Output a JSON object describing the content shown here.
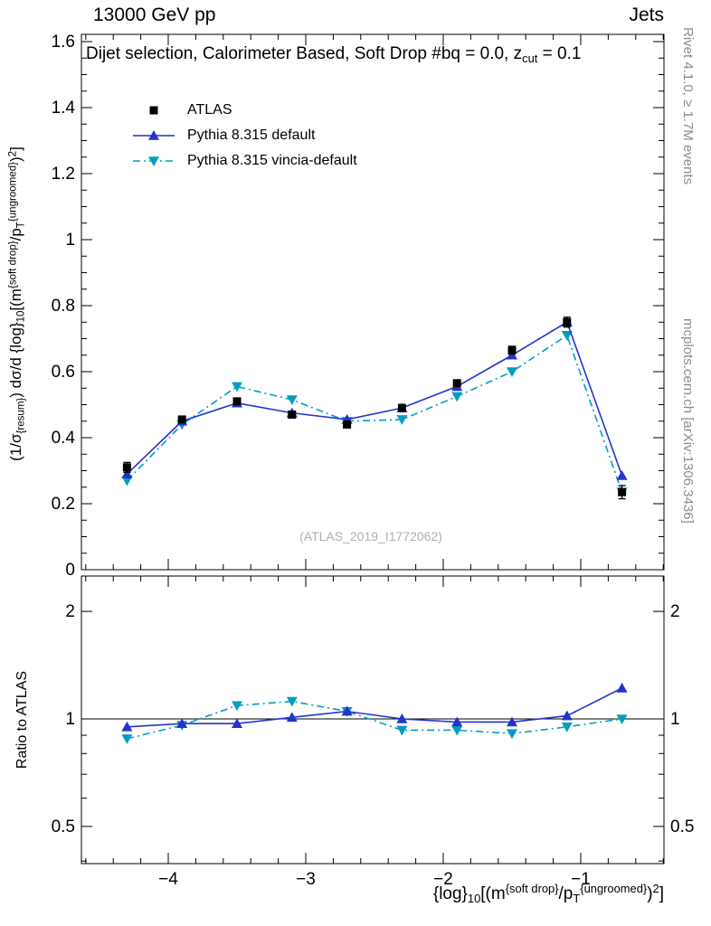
{
  "header": {
    "left_title": "13000 GeV pp",
    "right_title": "Jets"
  },
  "panel_title": [
    {
      "t": "Dijet selection, Calorimeter Based, Soft Drop #bq = 0.0, z",
      "s": "n"
    },
    {
      "t": "cut",
      "s": "sub"
    },
    {
      "t": " = 0.1",
      "s": "n"
    }
  ],
  "legend": [
    {
      "label": "ATLAS",
      "marker": "square",
      "color": "#000000",
      "line": "none"
    },
    {
      "label": "Pythia 8.315 default",
      "marker": "triangle-up",
      "color": "#2533cc",
      "line": "solid"
    },
    {
      "label": "Pythia 8.315 vincia-default",
      "marker": "triangle-down",
      "color": "#009fbf",
      "line": "dashdot"
    }
  ],
  "watermark": "(ATLAS_2019_I1772062)",
  "side_notes": {
    "top": "Rivet 4.1.0, ≥ 1.7M events",
    "bottom": "mcplots.cern.ch [arXiv:1306.3436]"
  },
  "axes": {
    "ylabel_main": [
      {
        "t": "(1/σ",
        "s": "n"
      },
      {
        "t": "{resum}",
        "s": "sub"
      },
      {
        "t": ") dσ/d {log}",
        "s": "n"
      },
      {
        "t": "10",
        "s": "sub"
      },
      {
        "t": "[(m",
        "s": "n"
      },
      {
        "t": "{soft drop}",
        "s": "sup"
      },
      {
        "t": "/p",
        "s": "n"
      },
      {
        "t": "T",
        "s": "sub"
      },
      {
        "t": "{ungroomed}",
        "s": "sup"
      },
      {
        "t": ")",
        "s": "n"
      },
      {
        "t": "2",
        "s": "sup"
      },
      {
        "t": "]",
        "s": "n"
      }
    ],
    "ylabel_ratio": "Ratio to ATLAS",
    "xlabel": [
      {
        "t": "{log}",
        "s": "n"
      },
      {
        "t": "10",
        "s": "sub"
      },
      {
        "t": "[(m",
        "s": "n"
      },
      {
        "t": "{soft drop}",
        "s": "sup"
      },
      {
        "t": "/p",
        "s": "n"
      },
      {
        "t": "T",
        "s": "sub"
      },
      {
        "t": "{ungroomed}",
        "s": "sup"
      },
      {
        "t": ")",
        "s": "n"
      },
      {
        "t": "2",
        "s": "sup"
      },
      {
        "t": "]",
        "s": "n"
      }
    ]
  },
  "chart_data": {
    "type": "line",
    "title": "13000 GeV pp — Jets",
    "x": [
      -4.3,
      -3.9,
      -3.5,
      -3.1,
      -2.7,
      -2.3,
      -1.9,
      -1.5,
      -1.1,
      -0.7
    ],
    "series": [
      {
        "name": "ATLAS",
        "marker": "square",
        "color": "#000000",
        "line": "none",
        "values": [
          0.31,
          0.455,
          0.51,
          0.47,
          0.44,
          0.49,
          0.565,
          0.665,
          0.75,
          0.235
        ],
        "errors": [
          0.015,
          0.01,
          0.01,
          0.01,
          0.01,
          0.01,
          0.01,
          0.012,
          0.015,
          0.02
        ]
      },
      {
        "name": "Pythia 8.315 default",
        "marker": "triangle-up",
        "color": "#2533cc",
        "line": "solid",
        "values": [
          0.29,
          0.45,
          0.505,
          0.475,
          0.455,
          0.49,
          0.555,
          0.65,
          0.75,
          0.285
        ]
      },
      {
        "name": "Pythia 8.315 vincia-default",
        "marker": "triangle-down",
        "color": "#009fbf",
        "line": "dashdot",
        "values": [
          0.27,
          0.44,
          0.555,
          0.515,
          0.45,
          0.455,
          0.525,
          0.6,
          0.71,
          0.235
        ]
      }
    ],
    "ratio_series": [
      {
        "name": "Pythia 8.315 vincia-default",
        "marker": "triangle-down",
        "color": "#009fbf",
        "line": "dashdot",
        "values": [
          0.88,
          0.96,
          1.09,
          1.12,
          1.05,
          0.93,
          0.93,
          0.91,
          0.95,
          1.0
        ]
      },
      {
        "name": "Pythia 8.315 default",
        "marker": "triangle-up",
        "color": "#2533cc",
        "line": "solid",
        "values": [
          0.95,
          0.97,
          0.97,
          1.01,
          1.05,
          1.0,
          0.98,
          0.98,
          1.02,
          1.22
        ]
      }
    ],
    "main_axis": {
      "xlim": [
        -4.63,
        -0.39
      ],
      "ylim": [
        0,
        1.62
      ],
      "xticks": [
        -4,
        -3,
        -2,
        -1
      ],
      "yticks": [
        0,
        0.2,
        0.4,
        0.6,
        0.8,
        1,
        1.2,
        1.4,
        1.6
      ],
      "grid": false
    },
    "ratio_axis": {
      "scale": "log",
      "ylim": [
        0.394,
        2.51
      ],
      "yticks": [
        0.5,
        1,
        2
      ],
      "yminor": [
        0.4,
        0.6,
        0.7,
        0.8,
        0.9
      ]
    },
    "legend_position": "top-left"
  }
}
